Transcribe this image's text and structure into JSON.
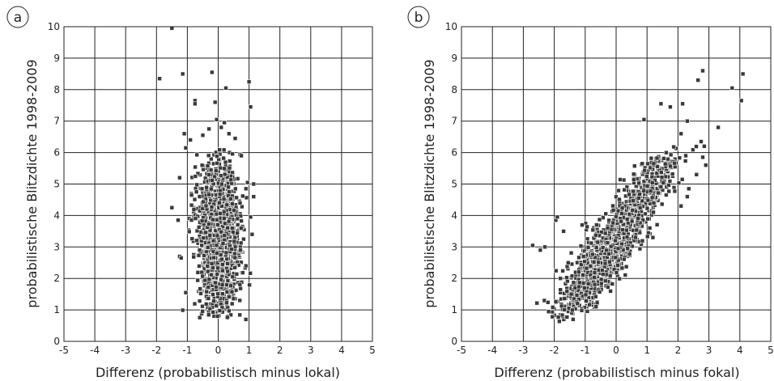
{
  "panels": [
    {
      "letter": "a",
      "xlabel": "Differenz (probabilistisch minus lokal)",
      "ylabel": "probabilistische Blitzdichte 1998-2009"
    },
    {
      "letter": "b",
      "xlabel": "Differenz (probabilistisch minus fokal)",
      "ylabel": "probabilistische Blitzdichte 1998-2009"
    }
  ],
  "chart_data": [
    {
      "type": "scatter",
      "title": "",
      "xlabel": "Differenz (probabilistisch minus lokal)",
      "ylabel": "probabilistische Blitzdichte 1998-2009",
      "xlim": [
        -5,
        5
      ],
      "ylim": [
        0,
        10
      ],
      "x_ticks": [
        -5,
        -4,
        -3,
        -2,
        -1,
        0,
        1,
        2,
        3,
        4,
        5
      ],
      "y_ticks": [
        0,
        1,
        2,
        3,
        4,
        5,
        6,
        7,
        8,
        9,
        10
      ],
      "grid": true,
      "marker_color": "#3a3a3a",
      "points": [
        [
          -1.5,
          9.95
        ],
        [
          -1.9,
          8.35
        ],
        [
          -1.15,
          8.5
        ],
        [
          -0.2,
          8.55
        ],
        [
          0.25,
          8.05
        ],
        [
          1.0,
          8.25
        ],
        [
          -0.75,
          7.65
        ],
        [
          -0.75,
          7.55
        ],
        [
          -0.1,
          7.6
        ],
        [
          1.05,
          7.45
        ],
        [
          -0.05,
          7.05
        ],
        [
          0.2,
          6.95
        ],
        [
          -0.3,
          6.75
        ],
        [
          0.1,
          6.8
        ],
        [
          -1.1,
          6.6
        ],
        [
          -0.5,
          6.55
        ],
        [
          0.35,
          6.6
        ],
        [
          -0.9,
          6.4
        ],
        [
          0.55,
          6.45
        ],
        [
          -1.05,
          6.15
        ],
        [
          0.75,
          5.9
        ],
        [
          -1.25,
          5.2
        ],
        [
          0.95,
          5.05
        ],
        [
          1.15,
          5.0
        ],
        [
          0.9,
          4.85
        ],
        [
          1.15,
          4.6
        ],
        [
          -1.5,
          4.25
        ],
        [
          1.05,
          3.95
        ],
        [
          -1.3,
          3.85
        ],
        [
          1.1,
          3.4
        ],
        [
          -1.25,
          2.7
        ],
        [
          -1.2,
          2.65
        ],
        [
          0.9,
          2.4
        ],
        [
          -1.05,
          1.55
        ],
        [
          0.7,
          1.3
        ]
      ],
      "cloud": {
        "x_mean": 0.0,
        "x_sd": 0.33,
        "y_min": 0.6,
        "y_max": 6.2,
        "y_mode": 3.0
      }
    },
    {
      "type": "scatter",
      "title": "",
      "xlabel": "Differenz (probabilistisch minus fokal)",
      "ylabel": "probabilistische Blitzdichte 1998-2009",
      "xlim": [
        -5,
        5
      ],
      "ylim": [
        0,
        10
      ],
      "x_ticks": [
        -5,
        -4,
        -3,
        -2,
        -1,
        0,
        1,
        2,
        3,
        4,
        5
      ],
      "y_ticks": [
        0,
        1,
        2,
        3,
        4,
        5,
        6,
        7,
        8,
        9,
        10
      ],
      "grid": true,
      "marker_color": "#3a3a3a",
      "points": [
        [
          2.8,
          8.6
        ],
        [
          2.65,
          8.3
        ],
        [
          4.1,
          8.5
        ],
        [
          3.75,
          8.05
        ],
        [
          4.05,
          7.65
        ],
        [
          2.15,
          7.55
        ],
        [
          1.45,
          7.55
        ],
        [
          1.75,
          7.45
        ],
        [
          3.3,
          6.8
        ],
        [
          2.3,
          7.0
        ],
        [
          0.9,
          7.05
        ],
        [
          2.1,
          6.6
        ],
        [
          2.75,
          6.35
        ],
        [
          2.85,
          6.2
        ],
        [
          2.8,
          5.85
        ],
        [
          2.9,
          5.6
        ],
        [
          2.25,
          5.9
        ],
        [
          2.6,
          5.3
        ],
        [
          2.35,
          4.85
        ],
        [
          2.3,
          4.6
        ],
        [
          2.1,
          4.3
        ],
        [
          1.2,
          4.1
        ],
        [
          -2.7,
          3.05
        ],
        [
          -2.3,
          3.0
        ],
        [
          -2.45,
          2.9
        ],
        [
          -1.95,
          3.85
        ],
        [
          -1.9,
          3.95
        ],
        [
          -1.7,
          3.5
        ],
        [
          -1.1,
          3.7
        ],
        [
          -1.55,
          2.5
        ],
        [
          -1.8,
          2.0
        ],
        [
          -1.45,
          1.5
        ],
        [
          -1.25,
          1.2
        ],
        [
          -0.65,
          1.1
        ]
      ],
      "cloud": {
        "slope": 0.62,
        "intercept": -2.05,
        "x_sd": 0.38,
        "y_min": 0.6,
        "y_max": 6.3,
        "y_mode": 2.6
      }
    }
  ]
}
